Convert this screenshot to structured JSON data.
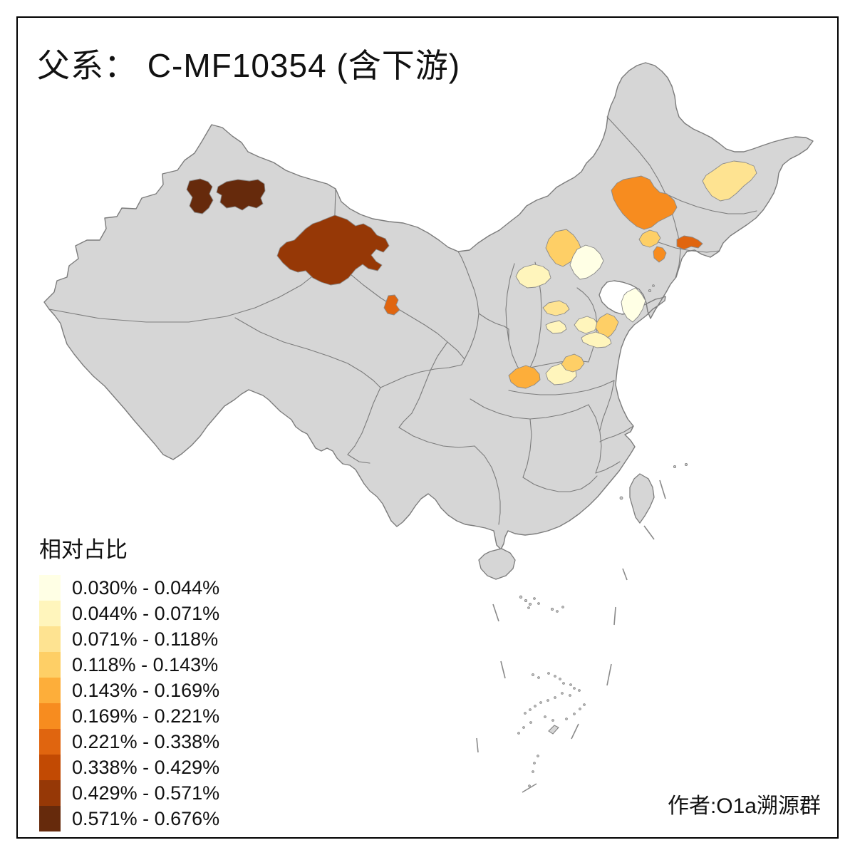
{
  "title": "父系： C-MF10354 (含下游)",
  "attribution": "作者:O1a溯源群",
  "legend": {
    "title": "相对占比",
    "items": [
      {
        "label": "0.030% - 0.044%",
        "color": "#FFFFE5"
      },
      {
        "label": "0.044% - 0.071%",
        "color": "#FFF5BC"
      },
      {
        "label": "0.071% - 0.118%",
        "color": "#FEE391"
      },
      {
        "label": "0.118% - 0.143%",
        "color": "#FECF66"
      },
      {
        "label": "0.143% - 0.169%",
        "color": "#FDAE3A"
      },
      {
        "label": "0.169% - 0.221%",
        "color": "#F78C1F"
      },
      {
        "label": "0.221% - 0.338%",
        "color": "#E0650F"
      },
      {
        "label": "0.338% - 0.429%",
        "color": "#C24A03"
      },
      {
        "label": "0.429% - 0.571%",
        "color": "#963806"
      },
      {
        "label": "0.571% - 0.676%",
        "color": "#662A0C"
      }
    ]
  },
  "map": {
    "sea_color": "#FFFFFF",
    "land_fill": "#D6D6D6",
    "border_color": "#7C7C7C",
    "frame_color": "#000000"
  },
  "chart_data": {
    "type": "choropleth-map",
    "title": "父系： C-MF10354 (含下游)",
    "legend_title": "相对占比",
    "legend_position": "bottom-left",
    "bins": [
      "0.030% - 0.044%",
      "0.044% - 0.071%",
      "0.071% - 0.118%",
      "0.118% - 0.143%",
      "0.143% - 0.169%",
      "0.169% - 0.221%",
      "0.221% - 0.338%",
      "0.338% - 0.429%",
      "0.429% - 0.571%",
      "0.571% - 0.676%"
    ],
    "bin_colors": [
      "#FFFFE5",
      "#FFF5BC",
      "#FEE391",
      "#FECF66",
      "#FDAE3A",
      "#F78C1F",
      "#E0650F",
      "#C24A03",
      "#963806",
      "#662A0C"
    ],
    "colored_regions": [
      {
        "id": "n-xinjiang-west",
        "bin": "0.571% - 0.676%",
        "color": "#662A0C"
      },
      {
        "id": "n-xinjiang-east",
        "bin": "0.571% - 0.676%",
        "color": "#662A0C"
      },
      {
        "id": "w-inner-mongolia",
        "bin": "0.429% - 0.571%",
        "color": "#963806"
      },
      {
        "id": "n-qinghai-small",
        "bin": "0.221% - 0.338%",
        "color": "#E0650F"
      },
      {
        "id": "e-inner-mongolia",
        "bin": "0.169% - 0.221%",
        "color": "#F78C1F"
      },
      {
        "id": "c-heilongjiang",
        "bin": "0.071% - 0.118%",
        "color": "#FEE391"
      },
      {
        "id": "w-liaoning-north",
        "bin": "0.118% - 0.143%",
        "color": "#FECF66"
      },
      {
        "id": "w-liaoning-south",
        "bin": "0.169% - 0.221%",
        "color": "#F78C1F"
      },
      {
        "id": "e-liaoning",
        "bin": "0.221% - 0.338%",
        "color": "#E0650F"
      },
      {
        "id": "nw-hebei",
        "bin": "0.118% - 0.143%",
        "color": "#FECF66"
      },
      {
        "id": "beijing-area",
        "bin": "0.030% - 0.044%",
        "color": "#FFFFE5"
      },
      {
        "id": "n-shanxi",
        "bin": "0.044% - 0.071%",
        "color": "#FFF5BC"
      },
      {
        "id": "w-hebei-south",
        "bin": "0.071% - 0.118%",
        "color": "#FEE391"
      },
      {
        "id": "shandong-peninsula",
        "bin": "0.030% - 0.044%",
        "color": "#FFFFE5"
      },
      {
        "id": "se-shanxi",
        "bin": "0.044% - 0.071%",
        "color": "#FFF5BC"
      },
      {
        "id": "nw-shandong",
        "bin": "0.044% - 0.071%",
        "color": "#FFF5BC"
      },
      {
        "id": "c-shandong",
        "bin": "0.118% - 0.143%",
        "color": "#FECF66"
      },
      {
        "id": "sw-shandong",
        "bin": "0.044% - 0.071%",
        "color": "#FFF5BC"
      },
      {
        "id": "s-shaanxi",
        "bin": "0.143% - 0.169%",
        "color": "#FDAE3A"
      },
      {
        "id": "sw-henan",
        "bin": "0.044% - 0.071%",
        "color": "#FFF5BC"
      },
      {
        "id": "c-henan",
        "bin": "0.118% - 0.143%",
        "color": "#FECF66"
      }
    ]
  }
}
